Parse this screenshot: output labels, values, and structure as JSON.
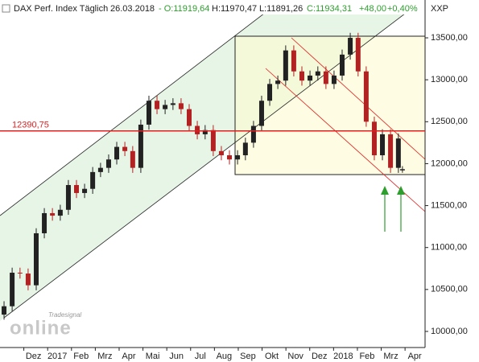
{
  "chart_data": {
    "type": "candlestick",
    "title": "DAX Perf. Index Täglich",
    "date": "26.03.2018",
    "quote_labels": [
      {
        "text": "- O:11919,64",
        "color": "#2e9e2e"
      },
      {
        "text": "H:11970,47",
        "color": "#222222"
      },
      {
        "text": "L:11891,26",
        "color": "#222222"
      },
      {
        "text": "C:11934,31",
        "color": "#2e9e2e"
      },
      {
        "text": "+48,00",
        "color": "#2e9e2e"
      },
      {
        "text": "+0,40%",
        "color": "#2e9e2e"
      }
    ],
    "axis_label": "XXP",
    "logo_small": "Tradesignal",
    "logo_big": "online",
    "up_color": "#222222",
    "down_color": "#b22222",
    "x": [
      0.17,
      0.51,
      0.84,
      1.18,
      1.52,
      1.86,
      2.2,
      2.53,
      2.87,
      3.21,
      3.55,
      3.89,
      4.22,
      4.56,
      4.9,
      5.24,
      5.57,
      5.91,
      6.25,
      6.59,
      6.93,
      7.26,
      7.6,
      7.94,
      8.28,
      8.61,
      8.95,
      9.29,
      9.63,
      9.97,
      10.3,
      10.64,
      10.98,
      11.32,
      11.66,
      11.99,
      12.33,
      12.67,
      13.01,
      13.34,
      13.68,
      14.02,
      14.36,
      14.7,
      15.03,
      15.37,
      15.71,
      16.05,
      16.39,
      16.72,
      16.89
    ],
    "open": [
      10200,
      10300,
      10700,
      10690,
      10550,
      11170,
      11410,
      11380,
      11450,
      11745,
      11650,
      11700,
      11900,
      11950,
      12050,
      12200,
      12150,
      11950,
      12465,
      12750,
      12650,
      12700,
      12720,
      12650,
      12450,
      12350,
      12400,
      12150,
      12100,
      12050,
      12100,
      12250,
      12450,
      12750,
      12950,
      12990,
      13350,
      13100,
      12990,
      13050,
      13100,
      12950,
      13050,
      13300,
      13500,
      13100,
      12500,
      12100,
      12350,
      11950,
      11919.64
    ],
    "high": [
      10360,
      10760,
      10760,
      10750,
      11230,
      11470,
      11470,
      11510,
      11805,
      11805,
      11760,
      11960,
      12010,
      12110,
      12260,
      12260,
      12210,
      12525,
      12810,
      12810,
      12760,
      12780,
      12780,
      12710,
      12510,
      12460,
      12460,
      12210,
      12160,
      12160,
      12310,
      12510,
      12810,
      13010,
      13050,
      13410,
      13410,
      13160,
      13110,
      13160,
      13160,
      13110,
      13360,
      13560,
      13560,
      13160,
      12560,
      12410,
      12410,
      12360,
      11970.47
    ],
    "low": [
      10140,
      10240,
      10630,
      10490,
      10490,
      11110,
      11320,
      11320,
      11390,
      11590,
      11590,
      11640,
      11840,
      11890,
      11990,
      12090,
      11890,
      11890,
      12405,
      12590,
      12590,
      12640,
      12590,
      12390,
      12290,
      12290,
      12090,
      12040,
      11990,
      11990,
      12040,
      12190,
      12390,
      12690,
      12890,
      12930,
      13040,
      12930,
      12930,
      12990,
      12890,
      12890,
      12990,
      13240,
      13040,
      12440,
      12040,
      12040,
      11890,
      11890,
      11891.26
    ],
    "close": [
      10300,
      10700,
      10690,
      10550,
      11170,
      11410,
      11380,
      11450,
      11745,
      11650,
      11700,
      11900,
      11950,
      12050,
      12200,
      12150,
      11950,
      12465,
      12750,
      12650,
      12700,
      12720,
      12650,
      12450,
      12350,
      12400,
      12150,
      12100,
      12050,
      12100,
      12250,
      12450,
      12750,
      12950,
      12990,
      13350,
      13100,
      12990,
      13050,
      13100,
      12950,
      13050,
      13300,
      13500,
      13100,
      12500,
      12100,
      12350,
      11950,
      12300,
      11934.31
    ],
    "xlim": [
      0,
      17.84
    ],
    "xticks": [
      {
        "value": 1,
        "label": "Dez"
      },
      {
        "value": 2,
        "label": "2017"
      },
      {
        "value": 3,
        "label": "Feb"
      },
      {
        "value": 4,
        "label": "Mrz"
      },
      {
        "value": 5,
        "label": "Apr"
      },
      {
        "value": 6,
        "label": "Mai"
      },
      {
        "value": 7,
        "label": "Jun"
      },
      {
        "value": 8,
        "label": "Jul"
      },
      {
        "value": 9,
        "label": "Aug"
      },
      {
        "value": 10,
        "label": "Sep"
      },
      {
        "value": 11,
        "label": "Okt"
      },
      {
        "value": 12,
        "label": "Nov"
      },
      {
        "value": 13,
        "label": "Dez"
      },
      {
        "value": 14,
        "label": "2018"
      },
      {
        "value": 15,
        "label": "Feb"
      },
      {
        "value": 16,
        "label": "Mrz"
      },
      {
        "value": 17,
        "label": "Apr"
      }
    ],
    "ylim": [
      9808,
      13951
    ],
    "yticks": [
      {
        "value": 10000,
        "label": "10000,00"
      },
      {
        "value": 10500,
        "label": "10500,00"
      },
      {
        "value": 11000,
        "label": "11000,00"
      },
      {
        "value": 11500,
        "label": "11500,00"
      },
      {
        "value": 12000,
        "label": "12000,00"
      },
      {
        "value": 12500,
        "label": "12500,00"
      },
      {
        "value": 13000,
        "label": "13000,00"
      },
      {
        "value": 13500,
        "label": "13500,00"
      }
    ],
    "hline": {
      "value": 12390.75,
      "label": "12390,75",
      "color": "#e02020"
    }
  }
}
